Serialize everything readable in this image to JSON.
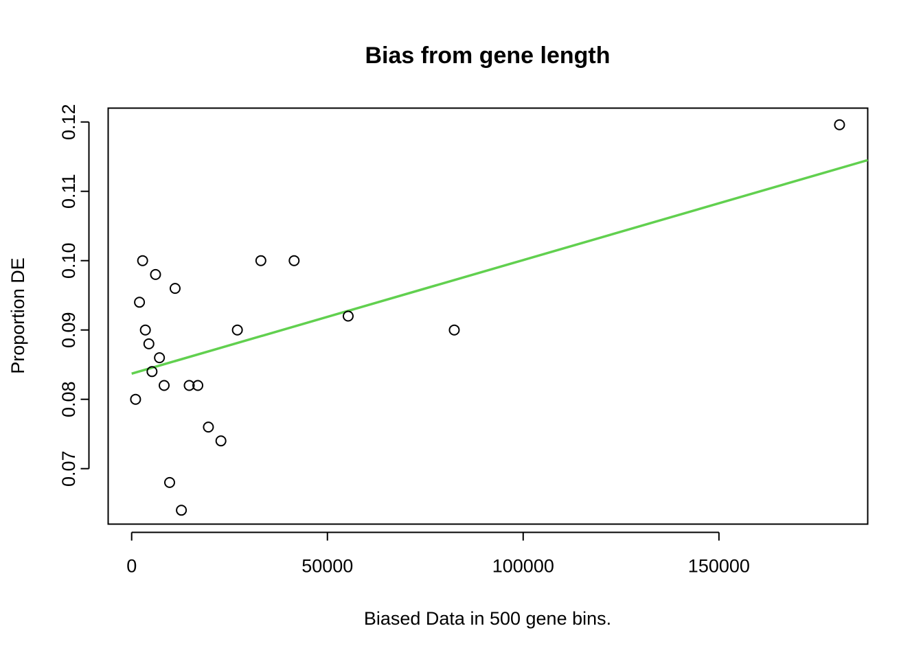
{
  "chart_data": {
    "type": "scatter",
    "title": "Bias from gene length",
    "xlabel": "Biased Data in 500 gene bins.",
    "ylabel": "Proportion DE",
    "xlim": [
      -6000,
      188000
    ],
    "ylim": [
      0.062,
      0.122
    ],
    "xticks": [
      0,
      50000,
      100000,
      150000
    ],
    "xtick_labels": [
      "0",
      "50000",
      "100000",
      "150000"
    ],
    "yticks": [
      0.07,
      0.08,
      0.09,
      0.1,
      0.11,
      0.12
    ],
    "ytick_labels": [
      "0.07",
      "0.08",
      "0.09",
      "0.10",
      "0.11",
      "0.12"
    ],
    "grid": false,
    "legend": "none",
    "point_style": "open-circle",
    "points": [
      {
        "x": 1000,
        "y": 0.08
      },
      {
        "x": 2000,
        "y": 0.094
      },
      {
        "x": 2800,
        "y": 0.1
      },
      {
        "x": 3500,
        "y": 0.09
      },
      {
        "x": 4400,
        "y": 0.088
      },
      {
        "x": 5200,
        "y": 0.084
      },
      {
        "x": 6100,
        "y": 0.098
      },
      {
        "x": 7100,
        "y": 0.086
      },
      {
        "x": 8300,
        "y": 0.082
      },
      {
        "x": 9700,
        "y": 0.068
      },
      {
        "x": 11100,
        "y": 0.096
      },
      {
        "x": 12700,
        "y": 0.064
      },
      {
        "x": 14700,
        "y": 0.082
      },
      {
        "x": 16900,
        "y": 0.082
      },
      {
        "x": 19600,
        "y": 0.076
      },
      {
        "x": 22800,
        "y": 0.074
      },
      {
        "x": 27000,
        "y": 0.09
      },
      {
        "x": 33000,
        "y": 0.1
      },
      {
        "x": 41500,
        "y": 0.1
      },
      {
        "x": 55300,
        "y": 0.092
      },
      {
        "x": 82400,
        "y": 0.09
      },
      {
        "x": 180800,
        "y": 0.1196
      }
    ],
    "fit_line": {
      "color": "#61d04f",
      "x": [
        0,
        188000
      ],
      "y": [
        0.0837,
        0.1145
      ]
    },
    "colors": {
      "points": "#000000",
      "axes": "#000000",
      "fit": "#61d04f"
    }
  }
}
